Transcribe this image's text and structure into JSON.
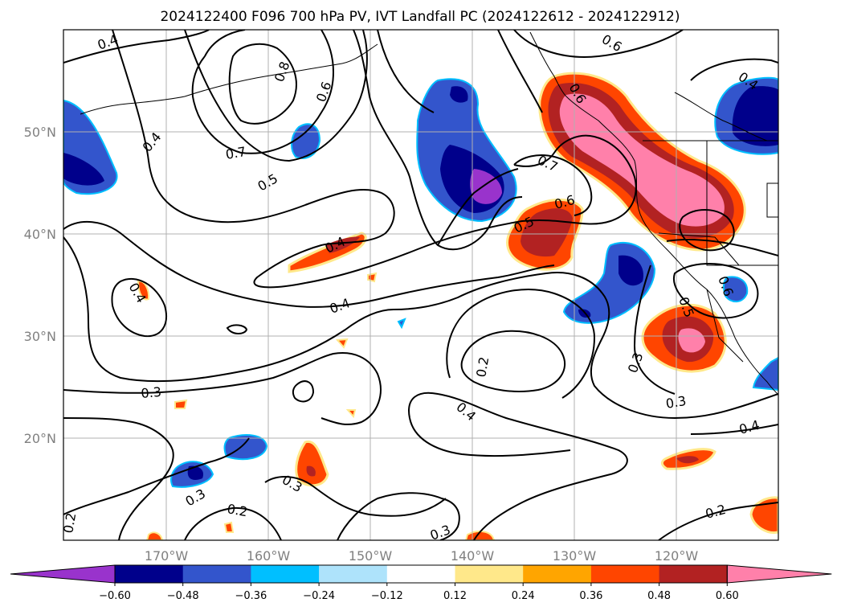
{
  "title": "2024122400 F096 700 hPa PV, IVT Landfall PC (2024122612 - 2024122912)",
  "lat_labels": [
    "50°N",
    "40°N",
    "30°N",
    "20°N"
  ],
  "lon_labels": [
    "170°W",
    "160°W",
    "150°W",
    "140°W",
    "130°W",
    "120°W"
  ],
  "colorbar": {
    "tick_labels": [
      "−0.60",
      "−0.48",
      "−0.36",
      "−0.24",
      "−0.12",
      "0.12",
      "0.24",
      "0.36",
      "0.48",
      "0.60"
    ],
    "colors": [
      "#9933cc",
      "#00008b",
      "#3355cc",
      "#00bfff",
      "#aee3fb",
      "#ffffff",
      "#ffe88a",
      "#ffa500",
      "#ff4500",
      "#b22222",
      "#ff80aa"
    ]
  },
  "contour_labels": [
    "0.4",
    "0.6",
    "0.8",
    "0.6",
    "0.7",
    "0.4",
    "0.5",
    "0.7",
    "0.6",
    "0.5",
    "0.4",
    "0.4",
    "0.4",
    "0.3",
    "0.3",
    "0.2",
    "0.2",
    "0.4",
    "0.3",
    "0.3",
    "0.4",
    "0.5",
    "0.6",
    "0.4",
    "0.3",
    "0.2",
    "0.2",
    "0.3",
    "0.6"
  ]
}
